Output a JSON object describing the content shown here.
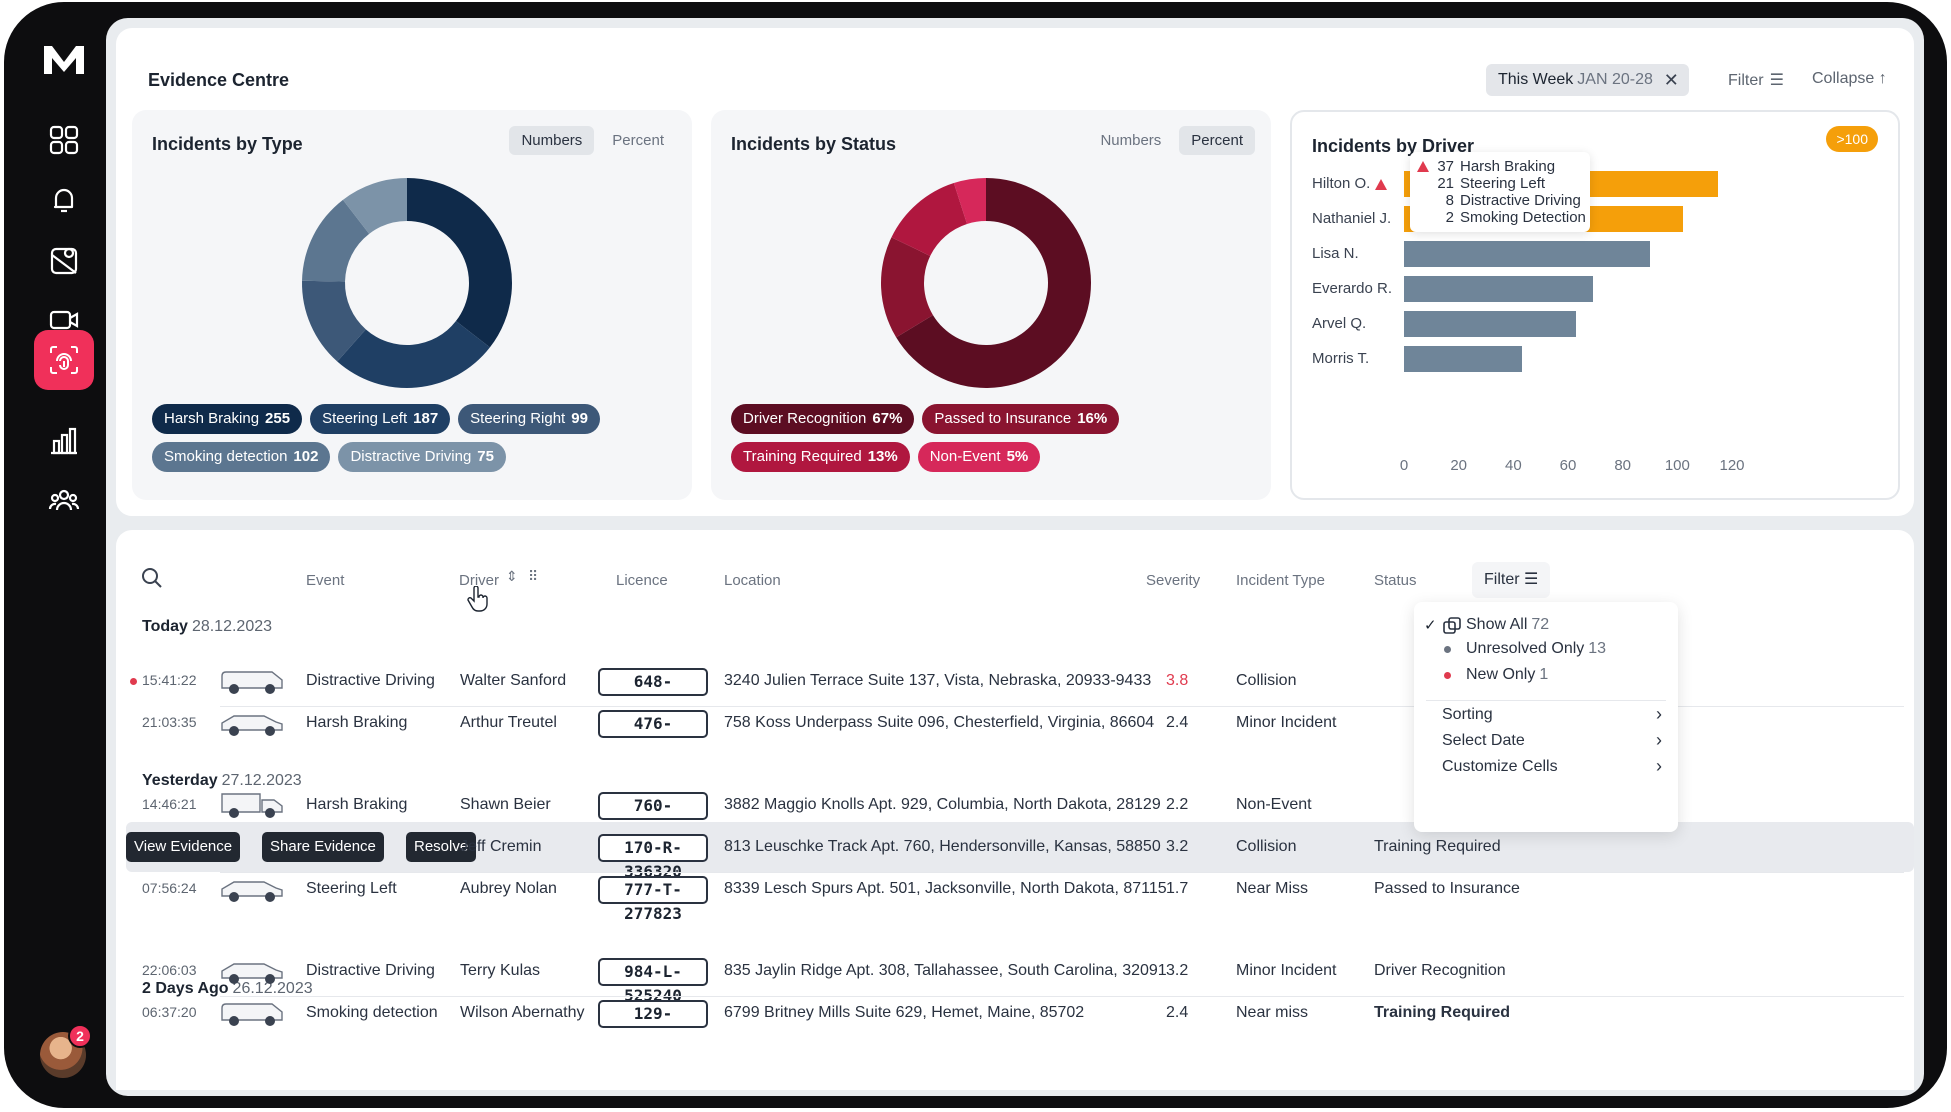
{
  "app": {
    "logo": "M",
    "avatar_badge": "2"
  },
  "header": {
    "title": "Evidence Centre",
    "period_label": "This Week",
    "period_range": "JAN 20-28",
    "filter_label": "Filter",
    "collapse_label": "Collapse"
  },
  "cards": {
    "type": {
      "title": "Incidents by Type",
      "toggle": [
        "Numbers",
        "Percent"
      ],
      "active": "Numbers",
      "legend": [
        {
          "label": "Harsh Braking",
          "value": "255",
          "color": "#0f2a4a"
        },
        {
          "label": "Steering Left",
          "value": "187",
          "color": "#1f3f64"
        },
        {
          "label": "Steering Right",
          "value": "99",
          "color": "#3d5878"
        },
        {
          "label": "Smoking detection",
          "value": "102",
          "color": "#5c7690"
        },
        {
          "label": "Distractive Driving",
          "value": "75",
          "color": "#7c93a8"
        }
      ]
    },
    "status": {
      "title": "Incidents by Status",
      "toggle": [
        "Numbers",
        "Percent"
      ],
      "active": "Percent",
      "legend": [
        {
          "label": "Driver Recognition",
          "value": "67%",
          "color": "#5c0d22"
        },
        {
          "label": "Passed to Insurance",
          "value": "16%",
          "color": "#8a1430"
        },
        {
          "label": "Training Required",
          "value": "13%",
          "color": "#b0173f"
        },
        {
          "label": "Non-Event",
          "value": "5%",
          "color": "#d6285a"
        }
      ]
    },
    "driver": {
      "title": "Incidents by Driver",
      "badge": ">100",
      "tooltip": [
        {
          "n": "37",
          "label": "Harsh Braking"
        },
        {
          "n": "21",
          "label": "Steering Left"
        },
        {
          "n": "8",
          "label": "Distractive Driving"
        },
        {
          "n": "2",
          "label": "Smoking Detection"
        }
      ],
      "drivers": [
        "Hilton O.",
        "Nathaniel J.",
        "Lisa N.",
        "Everardo R.",
        "Arvel Q.",
        "Morris T."
      ],
      "ticks": [
        "0",
        "20",
        "40",
        "60",
        "80",
        "100",
        "120"
      ]
    }
  },
  "chart_data": [
    {
      "type": "pie",
      "title": "Incidents by Type",
      "categories": [
        "Harsh Braking",
        "Steering Left",
        "Steering Right",
        "Smoking detection",
        "Distractive Driving"
      ],
      "values": [
        255,
        187,
        99,
        102,
        75
      ]
    },
    {
      "type": "pie",
      "title": "Incidents by Status",
      "categories": [
        "Driver Recognition",
        "Passed to Insurance",
        "Training Required",
        "Non-Event"
      ],
      "values": [
        67,
        16,
        13,
        5
      ]
    },
    {
      "type": "bar",
      "title": "Incidents by Driver",
      "categories": [
        "Hilton O.",
        "Nathaniel J.",
        "Lisa N.",
        "Everardo R.",
        "Arvel Q.",
        "Morris T."
      ],
      "values": [
        115,
        102,
        90,
        69,
        63,
        43
      ],
      "highlight": [
        true,
        true,
        false,
        false,
        false,
        false
      ],
      "xlim": [
        0,
        120
      ]
    }
  ],
  "table": {
    "columns": {
      "event": "Event",
      "driver": "Driver",
      "licence": "Licence",
      "location": "Location",
      "severity": "Severity",
      "incident_type": "Incident Type",
      "status": "Status"
    },
    "filter_label": "Filter",
    "groups": [
      {
        "label": "Today",
        "date": "28.12.2023"
      },
      {
        "label": "Yesterday",
        "date": "27.12.2023"
      },
      {
        "label": "2 Days Ago",
        "date": "26.12.2023"
      }
    ],
    "rows": [
      {
        "time": "15:41:22",
        "event": "Distractive Driving",
        "driver": "Walter Sanford",
        "plate": "648-",
        "location": "3240 Julien Terrace Suite 137, Vista, Nebraska, 20933-9433",
        "severity": "3.8",
        "type": "Collision",
        "status": ""
      },
      {
        "time": "21:03:35",
        "event": "Harsh Braking",
        "driver": "Arthur Treutel",
        "plate": "476-",
        "location": "758 Koss Underpass Suite 096, Chesterfield, Virginia, 86604",
        "severity": "2.4",
        "type": "Minor Incident",
        "status": ""
      },
      {
        "time": "14:46:21",
        "event": "Harsh Braking",
        "driver": "Shawn Beier",
        "plate": "760-",
        "location": "3882 Maggio Knolls Apt. 929, Columbia, North Dakota, 28129",
        "severity": "2.2",
        "type": "Non-Event",
        "status": ""
      },
      {
        "time": "",
        "event": "",
        "driver": "Jeff Cremin",
        "plate": "170-R-336320",
        "location": "813 Leuschke Track Apt. 760, Hendersonville, Kansas, 58850",
        "severity": "3.2",
        "type": "Collision",
        "status": "Training Required"
      },
      {
        "time": "07:56:24",
        "event": "Steering Left",
        "driver": "Aubrey Nolan",
        "plate": "777-T-277823",
        "location": "8339 Lesch Spurs Apt. 501, Jacksonville, North Dakota, 87115",
        "severity": "1.7",
        "type": "Near Miss",
        "status": "Passed to Insurance"
      },
      {
        "time": "22:06:03",
        "event": "Distractive Driving",
        "driver": "Terry Kulas",
        "plate": "984-L-525240",
        "location": "835 Jaylin Ridge Apt. 308, Tallahassee, South Carolina, 32091",
        "severity": "3.2",
        "type": "Minor Incident",
        "status": "Driver Recognition"
      },
      {
        "time": "06:37:20",
        "event": "Smoking detection",
        "driver": "Wilson Abernathy",
        "plate": "129-",
        "location": "6799 Britney Mills Suite 629, Hemet, Maine, 85702",
        "severity": "2.4",
        "type": "Near miss",
        "status": "Training Required"
      }
    ],
    "actions": [
      "View Evidence",
      "Share Evidence",
      "Resolve"
    ]
  },
  "filter_menu": {
    "show_all": "Show All",
    "show_all_count": "72",
    "unresolved": "Unresolved Only",
    "unresolved_count": "13",
    "new_only": "New Only",
    "new_only_count": "1",
    "sorting": "Sorting",
    "select_date": "Select Date",
    "customize": "Customize Cells"
  },
  "colors": {
    "accent": "#f0305a",
    "orange": "#f59f0a",
    "slate": "#6f8599"
  }
}
